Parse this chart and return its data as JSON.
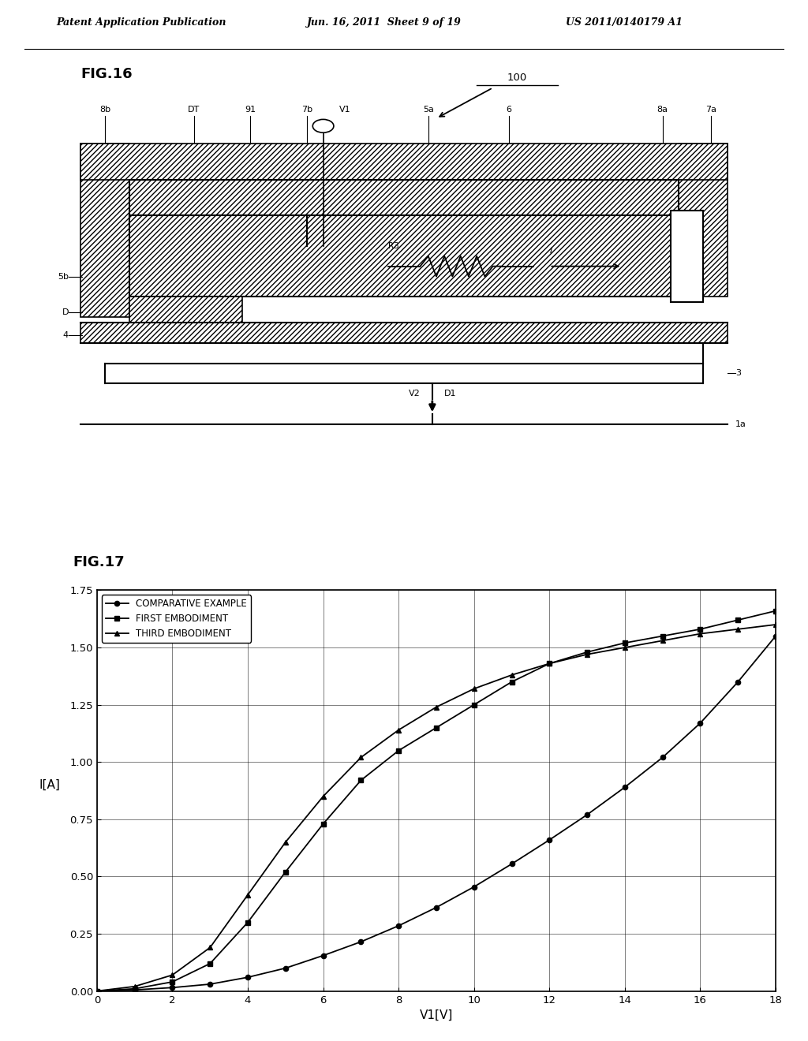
{
  "page_title_left": "Patent Application Publication",
  "page_title_mid": "Jun. 16, 2011  Sheet 9 of 19",
  "page_title_right": "US 2011/0140179 A1",
  "fig16_label": "FIG.16",
  "fig17_label": "FIG.17",
  "graph_xlabel": "V1[V]",
  "graph_ylabel": "I[A]",
  "graph_xlim": [
    0,
    18
  ],
  "graph_ylim": [
    0.0,
    1.75
  ],
  "graph_xticks": [
    0,
    2,
    4,
    6,
    8,
    10,
    12,
    14,
    16,
    18
  ],
  "graph_yticks": [
    0.0,
    0.25,
    0.5,
    0.75,
    1.0,
    1.25,
    1.5,
    1.75
  ],
  "legend_labels": [
    "COMPARATIVE EXAMPLE",
    "FIRST EMBODIMENT",
    "THIRD EMBODIMENT"
  ],
  "comp_x": [
    0,
    1,
    2,
    3,
    4,
    5,
    6,
    7,
    8,
    9,
    10,
    11,
    12,
    13,
    14,
    15,
    16,
    17,
    18
  ],
  "comp_y": [
    0,
    0.005,
    0.015,
    0.03,
    0.06,
    0.1,
    0.155,
    0.215,
    0.285,
    0.365,
    0.455,
    0.555,
    0.66,
    0.77,
    0.89,
    1.02,
    1.17,
    1.35,
    1.55
  ],
  "first_x": [
    0,
    1,
    2,
    3,
    4,
    5,
    6,
    7,
    8,
    9,
    10,
    11,
    12,
    13,
    14,
    15,
    16,
    17,
    18
  ],
  "first_y": [
    0,
    0.01,
    0.04,
    0.12,
    0.3,
    0.52,
    0.73,
    0.92,
    1.05,
    1.15,
    1.25,
    1.35,
    1.43,
    1.48,
    1.52,
    1.55,
    1.58,
    1.62,
    1.66
  ],
  "third_x": [
    0,
    1,
    2,
    3,
    4,
    5,
    6,
    7,
    8,
    9,
    10,
    11,
    12,
    13,
    14,
    15,
    16,
    17,
    18
  ],
  "third_y": [
    0,
    0.02,
    0.07,
    0.19,
    0.42,
    0.65,
    0.85,
    1.02,
    1.14,
    1.24,
    1.32,
    1.38,
    1.43,
    1.47,
    1.5,
    1.53,
    1.56,
    1.58,
    1.6
  ],
  "bg_color": "#ffffff"
}
